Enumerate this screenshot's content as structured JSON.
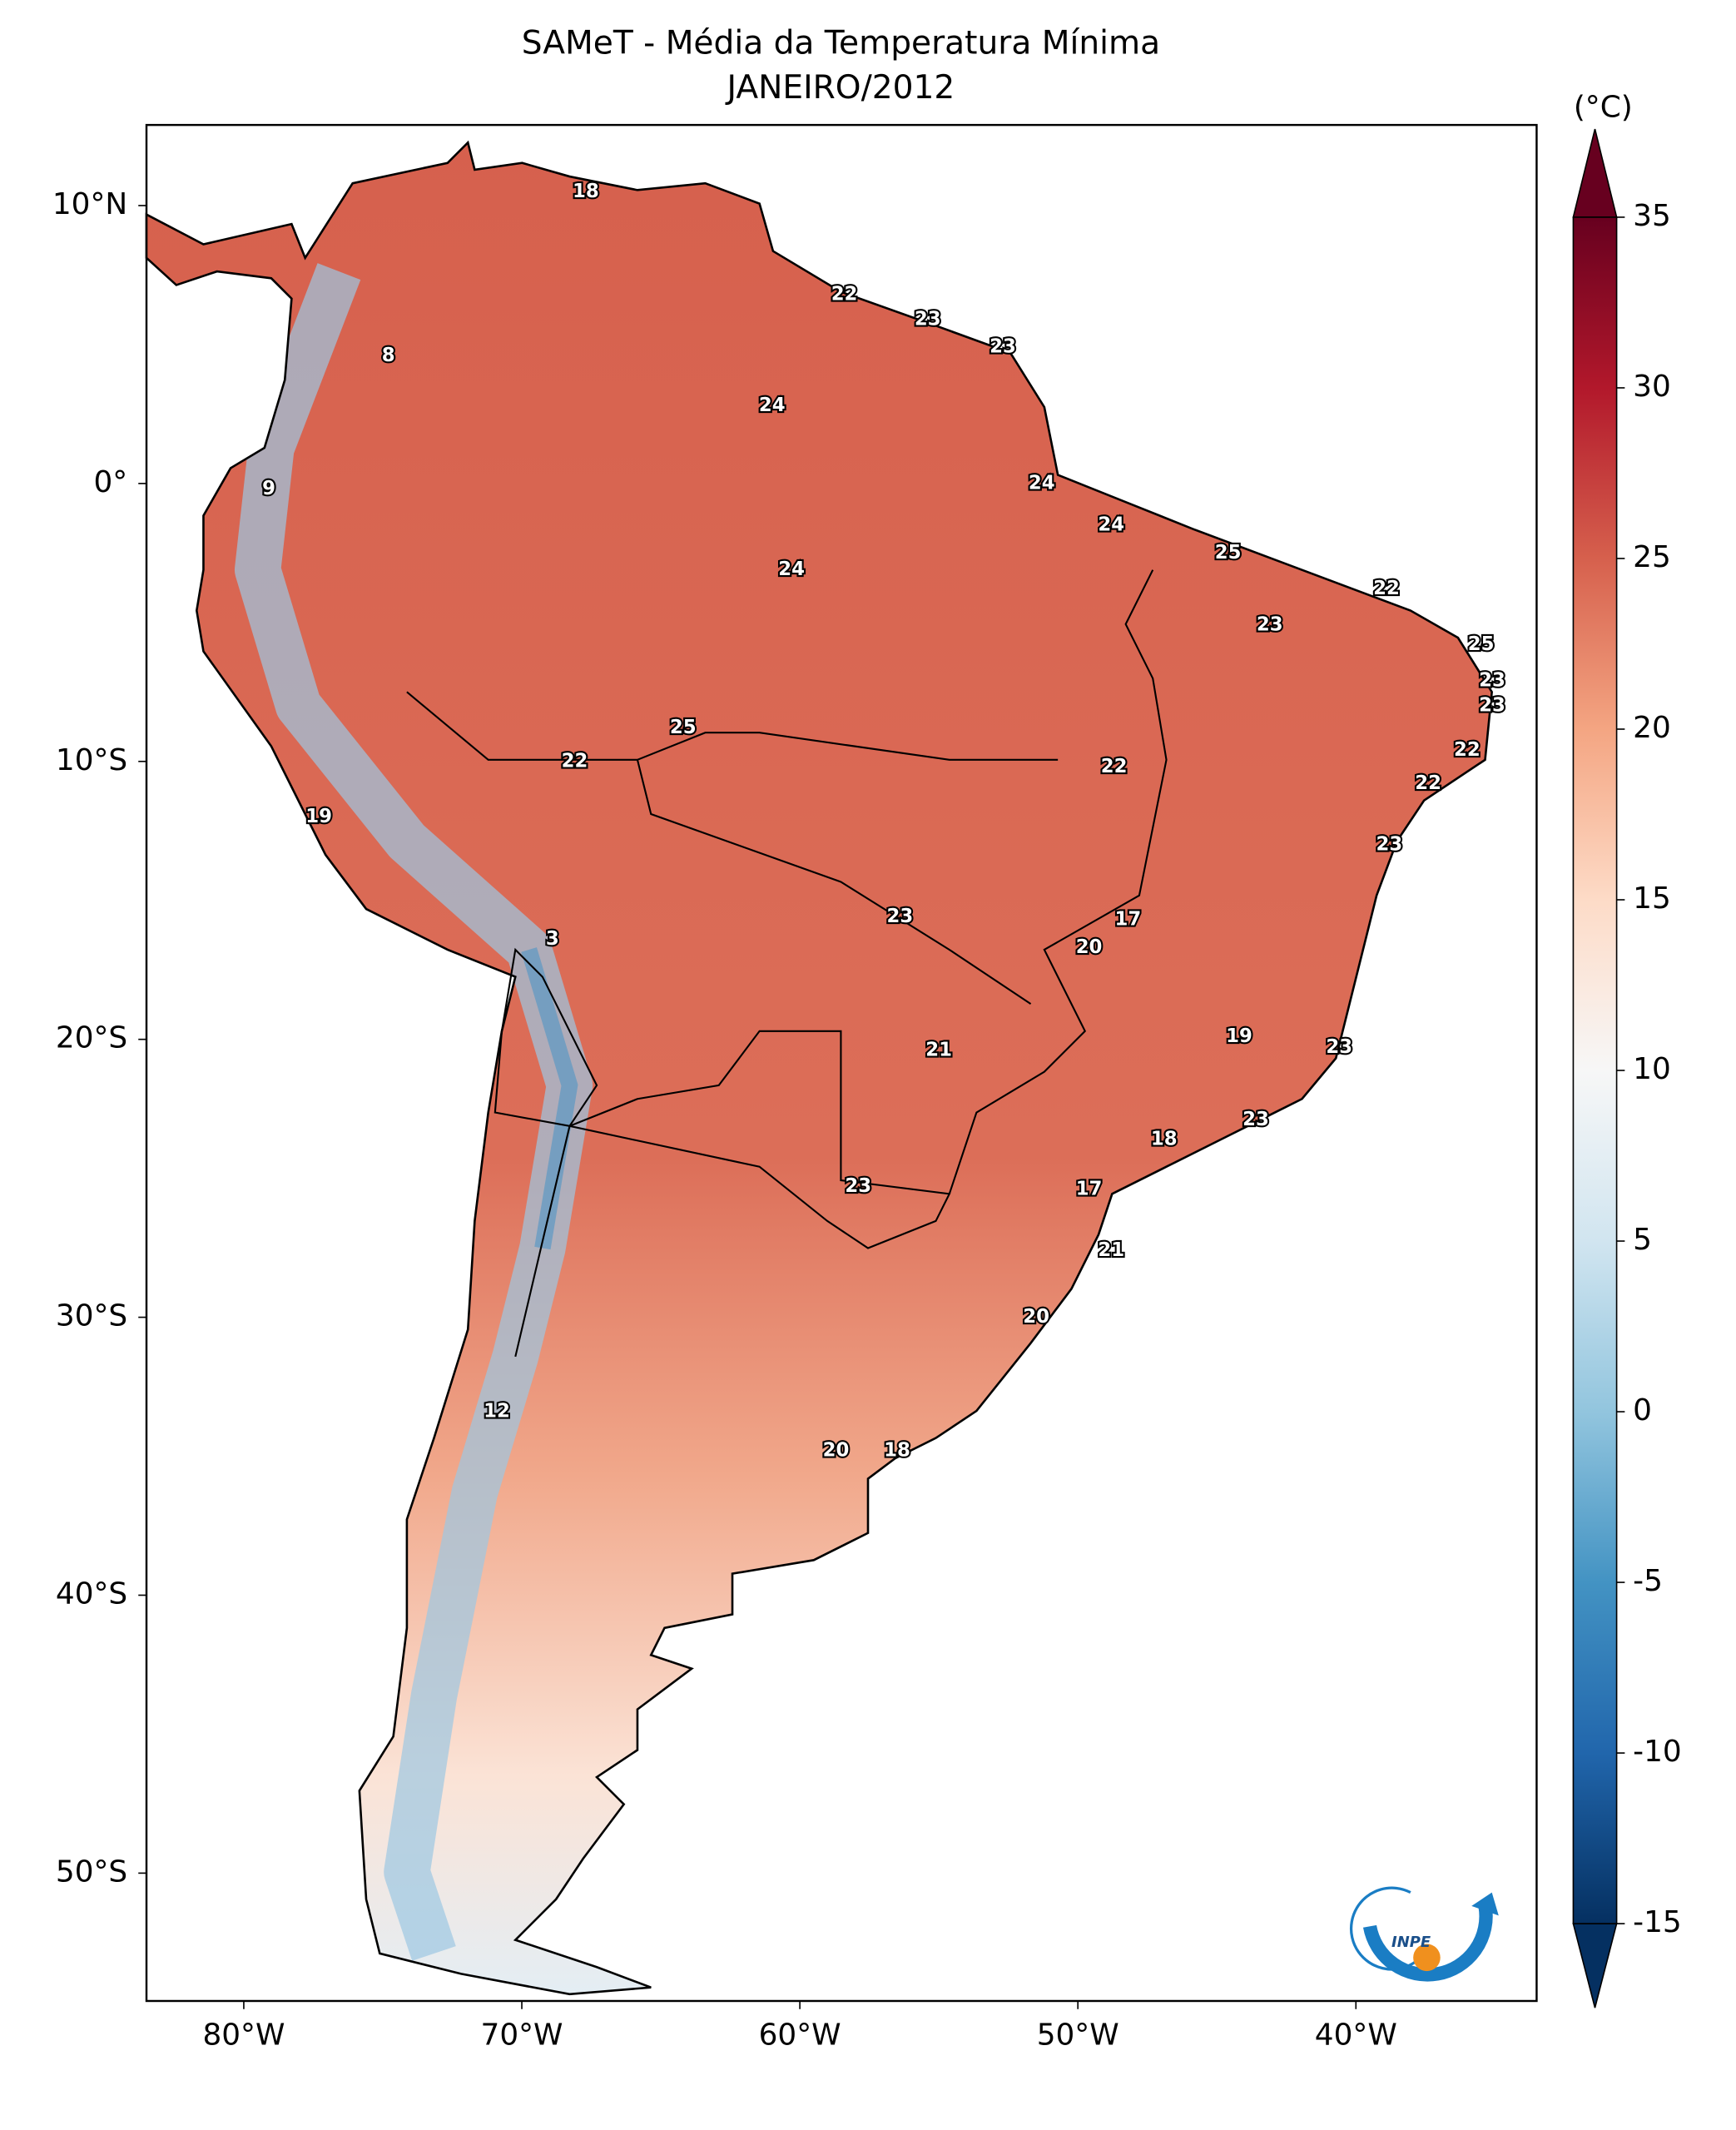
{
  "chart_data": {
    "type": "map",
    "title": "SAMeT - Média da Temperatura Mínima",
    "subtitle": "JANEIRO/2012",
    "unit": "(°C)",
    "logo": "INPE",
    "xlim": [
      -83.5,
      -33.5
    ],
    "ylim": [
      -54.6,
      12.9
    ],
    "xticks": [
      {
        "value": -80,
        "label": "80°W"
      },
      {
        "value": -70,
        "label": "70°W"
      },
      {
        "value": -60,
        "label": "60°W"
      },
      {
        "value": -50,
        "label": "50°W"
      },
      {
        "value": -40,
        "label": "40°W"
      }
    ],
    "yticks": [
      {
        "value": 10,
        "label": "10°N"
      },
      {
        "value": 0,
        "label": "0°"
      },
      {
        "value": -10,
        "label": "10°S"
      },
      {
        "value": -20,
        "label": "20°S"
      },
      {
        "value": -30,
        "label": "30°S"
      },
      {
        "value": -40,
        "label": "40°S"
      },
      {
        "value": -50,
        "label": "50°S"
      }
    ],
    "clim": [
      -15,
      35
    ],
    "cticks": [
      -15,
      -10,
      -5,
      0,
      5,
      10,
      15,
      20,
      25,
      30,
      35
    ],
    "colormap": [
      "#053061",
      "#2166ac",
      "#4393c3",
      "#92c5de",
      "#d1e5f0",
      "#f7f7f7",
      "#fddbc7",
      "#f4a582",
      "#d6604d",
      "#b2182b",
      "#67001f"
    ],
    "points": [
      {
        "lon": -67.7,
        "lat": 10.5,
        "value": 18
      },
      {
        "lon": -74.8,
        "lat": 4.6,
        "value": 8
      },
      {
        "lon": -79.1,
        "lat": -0.2,
        "value": 9
      },
      {
        "lon": -58.4,
        "lat": 6.8,
        "value": 22
      },
      {
        "lon": -55.4,
        "lat": 5.9,
        "value": 23
      },
      {
        "lon": -52.7,
        "lat": 4.9,
        "value": 23
      },
      {
        "lon": -61.0,
        "lat": 2.8,
        "value": 24
      },
      {
        "lon": -51.3,
        "lat": 0.0,
        "value": 24
      },
      {
        "lon": -48.8,
        "lat": -1.5,
        "value": 24
      },
      {
        "lon": -60.3,
        "lat": -3.1,
        "value": 24
      },
      {
        "lon": -44.6,
        "lat": -2.5,
        "value": 25
      },
      {
        "lon": -38.9,
        "lat": -3.8,
        "value": 22
      },
      {
        "lon": -43.1,
        "lat": -5.1,
        "value": 23
      },
      {
        "lon": -35.5,
        "lat": -5.8,
        "value": 25
      },
      {
        "lon": -35.1,
        "lat": -7.1,
        "value": 23
      },
      {
        "lon": -35.1,
        "lat": -8.0,
        "value": 23
      },
      {
        "lon": -64.2,
        "lat": -8.8,
        "value": 25
      },
      {
        "lon": -68.1,
        "lat": -10.0,
        "value": 22
      },
      {
        "lon": -48.7,
        "lat": -10.2,
        "value": 22
      },
      {
        "lon": -36.0,
        "lat": -9.6,
        "value": 22
      },
      {
        "lon": -37.4,
        "lat": -10.8,
        "value": 22
      },
      {
        "lon": -77.3,
        "lat": -12.0,
        "value": 19
      },
      {
        "lon": -38.8,
        "lat": -13.0,
        "value": 23
      },
      {
        "lon": -56.4,
        "lat": -15.6,
        "value": 23
      },
      {
        "lon": -48.2,
        "lat": -15.7,
        "value": 17
      },
      {
        "lon": -49.6,
        "lat": -16.7,
        "value": 20
      },
      {
        "lon": -68.9,
        "lat": -16.4,
        "value": 3
      },
      {
        "lon": -44.2,
        "lat": -19.9,
        "value": 19
      },
      {
        "lon": -55.0,
        "lat": -20.4,
        "value": 21
      },
      {
        "lon": -40.6,
        "lat": -20.3,
        "value": 23
      },
      {
        "lon": -43.6,
        "lat": -22.9,
        "value": 23
      },
      {
        "lon": -46.9,
        "lat": -23.6,
        "value": 18
      },
      {
        "lon": -57.9,
        "lat": -25.3,
        "value": 23
      },
      {
        "lon": -49.6,
        "lat": -25.4,
        "value": 17
      },
      {
        "lon": -48.8,
        "lat": -27.6,
        "value": 21
      },
      {
        "lon": -51.5,
        "lat": -30.0,
        "value": 20
      },
      {
        "lon": -70.9,
        "lat": -33.4,
        "value": 12
      },
      {
        "lon": -58.7,
        "lat": -34.8,
        "value": 20
      },
      {
        "lon": -56.5,
        "lat": -34.8,
        "value": 18
      }
    ]
  }
}
